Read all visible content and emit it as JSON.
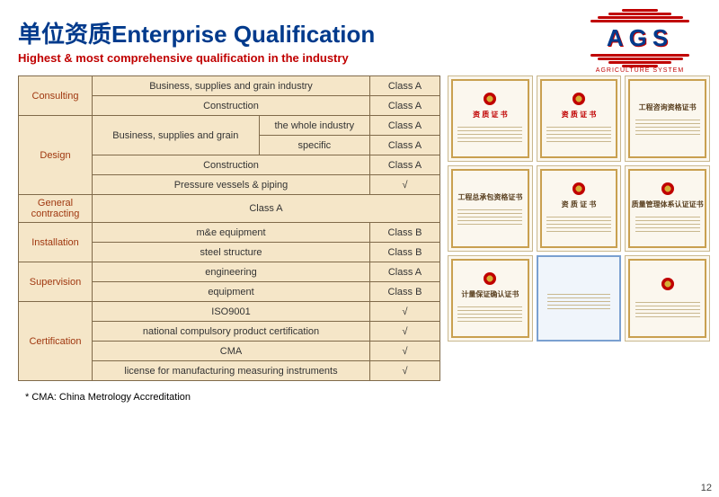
{
  "header": {
    "title": "单位资质Enterprise Qualification",
    "subtitle": "Highest & most comprehensive qualification in the industry"
  },
  "logo": {
    "text": "AGS",
    "sub": "AGRICULTURE SYSTEM"
  },
  "table": {
    "rows": [
      {
        "cat": "Consulting",
        "catRowspan": 2,
        "sub": "Business, supplies and grain industry",
        "subColspan": 2,
        "cls": "Class A"
      },
      {
        "sub": "Construction",
        "subColspan": 2,
        "cls": "Class A"
      },
      {
        "cat": "Design",
        "catRowspan": 4,
        "sub": "Business, supplies and grain",
        "subRowspan": 2,
        "sub2": "the whole industry",
        "cls": "Class A"
      },
      {
        "sub2": "specific",
        "cls": "Class A"
      },
      {
        "sub": "Construction",
        "subColspan": 2,
        "cls": "Class A"
      },
      {
        "sub": "Pressure vessels & piping",
        "subColspan": 2,
        "cls": "√"
      },
      {
        "cat": "General contracting",
        "catRowspan": 1,
        "sub": "Class A",
        "subColspan": 3
      },
      {
        "cat": "Installation",
        "catRowspan": 2,
        "sub": "m&e equipment",
        "subColspan": 2,
        "cls": "Class B"
      },
      {
        "sub": "steel structure",
        "subColspan": 2,
        "cls": "Class B"
      },
      {
        "cat": "Supervision",
        "catRowspan": 2,
        "sub": "engineering",
        "subColspan": 2,
        "cls": "Class A"
      },
      {
        "sub": "equipment",
        "subColspan": 2,
        "cls": "Class B"
      },
      {
        "cat": "Certification",
        "catRowspan": 4,
        "sub": "ISO9001",
        "subColspan": 2,
        "cls": "√"
      },
      {
        "sub": "national compulsory product certification",
        "subColspan": 2,
        "cls": "√"
      },
      {
        "sub": "CMA",
        "subColspan": 2,
        "cls": "√"
      },
      {
        "sub": "license for manufacturing measuring instruments",
        "subColspan": 2,
        "cls": "√"
      }
    ]
  },
  "footnote": "* CMA: China Metrology Accreditation",
  "pagenum": "12",
  "certs": [
    {
      "title": "资 质 证 书",
      "frame": true,
      "emblem": true,
      "titleClass": "red"
    },
    {
      "title": "资 质 证 书",
      "frame": true,
      "emblem": true,
      "titleClass": "red"
    },
    {
      "title": "工程咨询资格证书",
      "frame": true,
      "emblem": false,
      "titleClass": ""
    },
    {
      "title": "工程总承包资格证书",
      "frame": true,
      "emblem": false,
      "titleClass": ""
    },
    {
      "title": "资 质 证 书",
      "frame": true,
      "emblem": true,
      "titleClass": ""
    },
    {
      "title": "质量管理体系认证证书",
      "frame": true,
      "emblem": true,
      "titleClass": ""
    },
    {
      "title": "计量保证确认证书",
      "frame": true,
      "emblem": true,
      "titleClass": ""
    },
    {
      "title": "",
      "frame": false,
      "emblem": false,
      "titleClass": "blue",
      "blue": true
    },
    {
      "title": "",
      "frame": true,
      "emblem": true,
      "titleClass": ""
    }
  ],
  "colors": {
    "titleColor": "#003a8c",
    "subtitleColor": "#c00000",
    "tableBorder": "#806a4a",
    "cellBg": "#f5e6c8",
    "catText": "#a03810"
  }
}
